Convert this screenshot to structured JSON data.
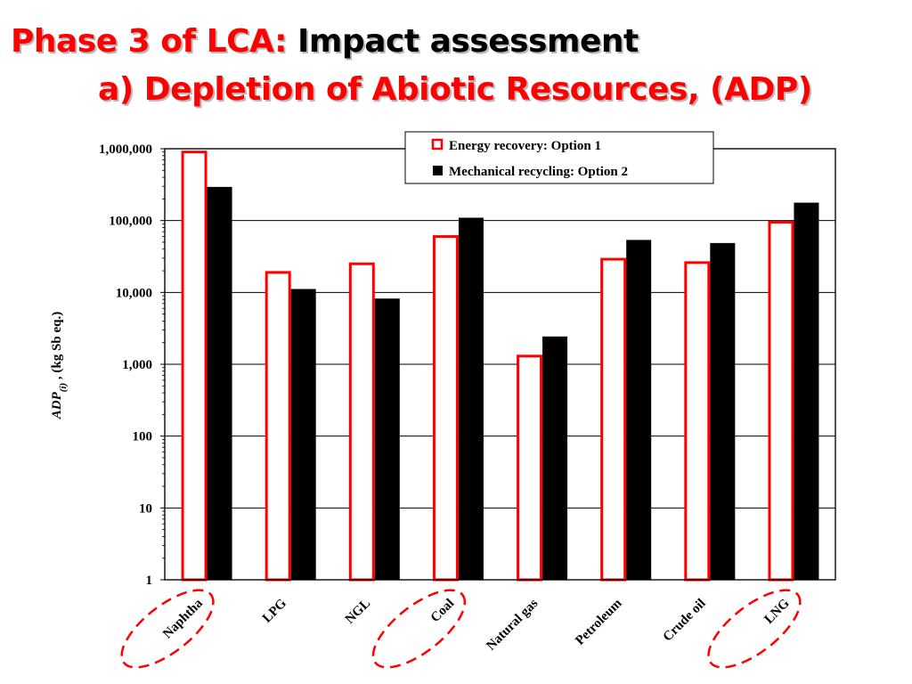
{
  "title": {
    "part1": "Phase 3 of LCA: ",
    "part2": "Impact assessment",
    "line2": "a) Depletion of Abiotic Resources, (ADP)"
  },
  "colors": {
    "accent": "#ff0000",
    "option1_fill": "#ffffff",
    "option1_stroke": "#ff0000",
    "option2_fill": "#000000",
    "highlight_ellipse": "#ff0000"
  },
  "chart_data": {
    "type": "bar",
    "scale": "log",
    "ylim": [
      1,
      1000000
    ],
    "yticks": [
      "1",
      "10",
      "100",
      "1,000",
      "10,000",
      "100,000",
      "1,000,000"
    ],
    "ylabel_italic": "ADP",
    "ylabel_sub": "(i)",
    "ylabel_rest": " , (kg Sb eq.)",
    "categories": [
      "Naphtha",
      "LPG",
      "NGL",
      "Coal",
      "Natural gas",
      "Petroleum",
      "Crude oil",
      "LNG"
    ],
    "highlighted": [
      "Naphtha",
      "Coal",
      "LNG"
    ],
    "series": [
      {
        "name": "Energy recovery: Option 1",
        "values": [
          900000,
          19000,
          25000,
          60000,
          1300,
          29000,
          26000,
          95000
        ]
      },
      {
        "name": "Mechanical recycling: Option 2",
        "values": [
          290000,
          11000,
          8100,
          108000,
          2400,
          53000,
          48000,
          175000
        ]
      }
    ],
    "legend_position": "top-right",
    "grid": true
  }
}
